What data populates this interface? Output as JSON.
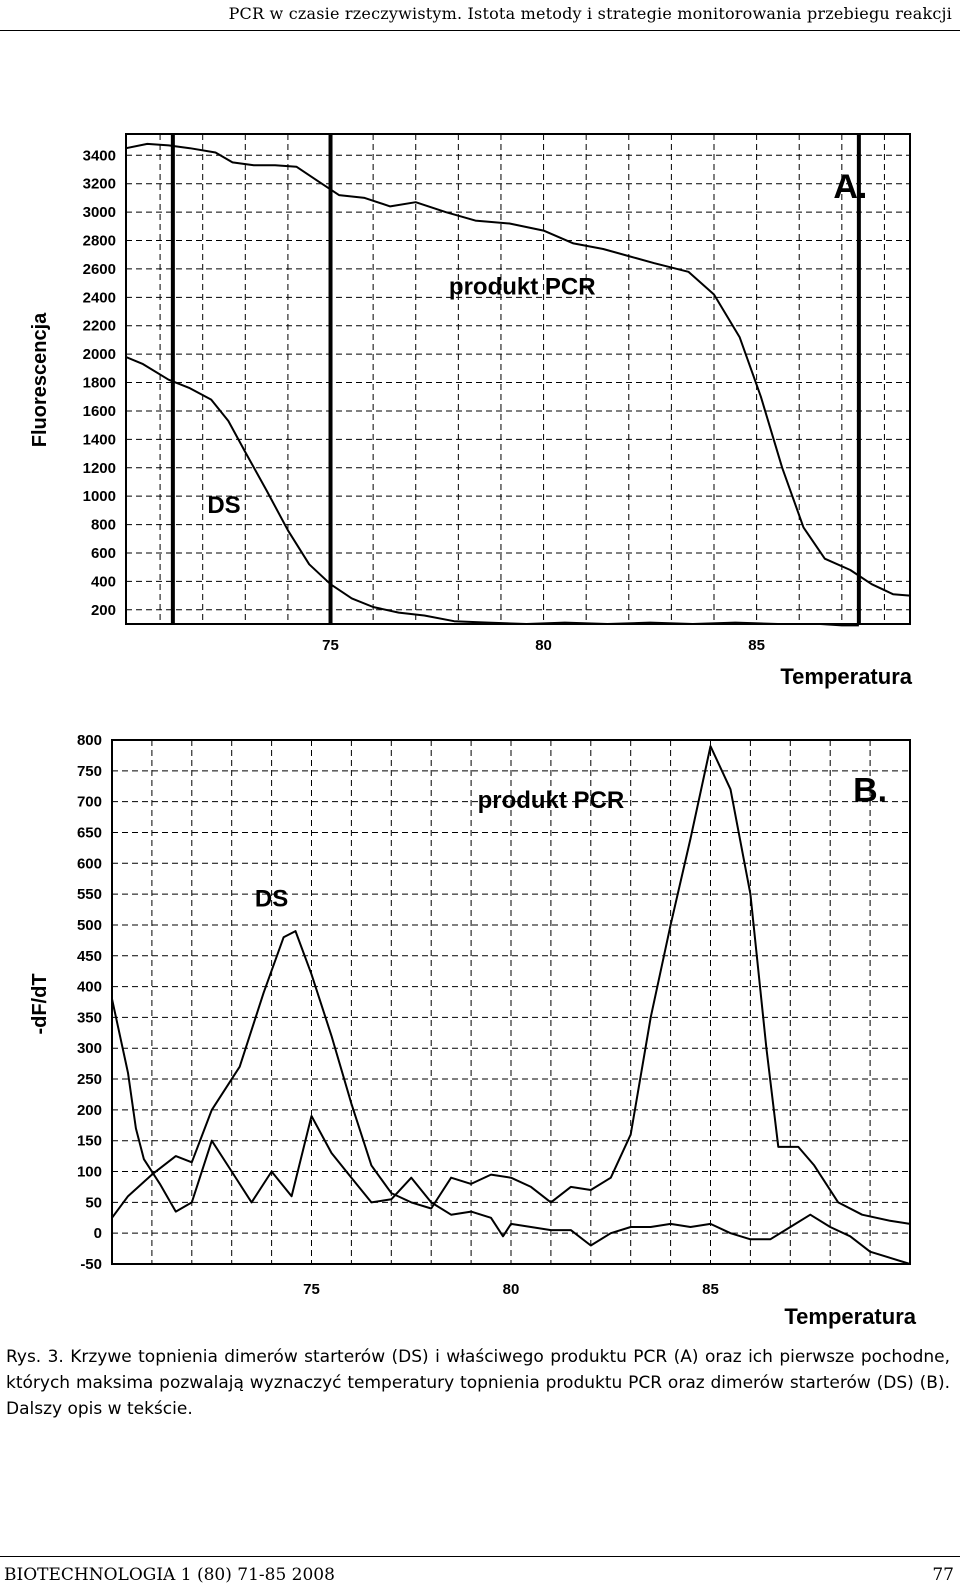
{
  "header": {
    "running_title": "PCR w czasie rzeczywistym. Istota metody i strategie monitorowania przebiegu reakcji"
  },
  "caption": {
    "text": "Rys. 3. Krzywe topnienia dimerów starterów (DS) i właściwego produktu PCR (A) oraz ich pierwsze pochodne, których maksima pozwalają wyznaczyć temperatury topnienia produktu PCR oraz dimerów starterów (DS) (B). Dalszy opis w tekście."
  },
  "footer": {
    "journal": "BIOTECHNOLOGIA 1 (80) 71-85 2008",
    "page_number": "77"
  },
  "chart_data": [
    {
      "panel": "A.",
      "type": "line",
      "xlabel": "Temperatura",
      "ylabel": "Fluorescencja",
      "xlim": [
        70.2,
        88.6
      ],
      "ylim": [
        100,
        3550
      ],
      "x_ticks": [
        75,
        80,
        85
      ],
      "y_ticks": [
        200,
        400,
        600,
        800,
        1000,
        1200,
        1400,
        1600,
        1800,
        2000,
        2200,
        2400,
        2600,
        2800,
        3000,
        3200,
        3400
      ],
      "grid": true,
      "vertical_markers": [
        71.3,
        75.0,
        87.4
      ],
      "annotations": [
        {
          "text": "produkt PCR",
          "x": 79.5,
          "y": 2420
        },
        {
          "text": "DS",
          "x": 72.5,
          "y": 880
        },
        {
          "text": "A.",
          "x": 87.2,
          "y": 3100
        }
      ],
      "series": [
        {
          "name": "produkt PCR",
          "points": [
            [
              70.2,
              3450
            ],
            [
              70.7,
              3480
            ],
            [
              71.2,
              3470
            ],
            [
              71.7,
              3450
            ],
            [
              72.3,
              3420
            ],
            [
              72.7,
              3350
            ],
            [
              73.2,
              3330
            ],
            [
              73.7,
              3330
            ],
            [
              74.2,
              3320
            ],
            [
              74.7,
              3220
            ],
            [
              75.2,
              3120
            ],
            [
              75.8,
              3100
            ],
            [
              76.4,
              3040
            ],
            [
              77.0,
              3070
            ],
            [
              77.7,
              3000
            ],
            [
              78.4,
              2940
            ],
            [
              79.2,
              2920
            ],
            [
              80.0,
              2870
            ],
            [
              80.7,
              2780
            ],
            [
              81.4,
              2740
            ],
            [
              82.0,
              2690
            ],
            [
              82.6,
              2640
            ],
            [
              83.4,
              2580
            ],
            [
              84.0,
              2420
            ],
            [
              84.6,
              2120
            ],
            [
              85.1,
              1700
            ],
            [
              85.6,
              1200
            ],
            [
              86.1,
              780
            ],
            [
              86.6,
              560
            ],
            [
              87.2,
              480
            ],
            [
              87.7,
              380
            ],
            [
              88.2,
              310
            ],
            [
              88.6,
              300
            ]
          ]
        },
        {
          "name": "DS",
          "points": [
            [
              70.2,
              1980
            ],
            [
              70.6,
              1930
            ],
            [
              71.2,
              1820
            ],
            [
              71.7,
              1760
            ],
            [
              72.2,
              1680
            ],
            [
              72.6,
              1530
            ],
            [
              73.0,
              1310
            ],
            [
              73.5,
              1040
            ],
            [
              74.0,
              760
            ],
            [
              74.5,
              520
            ],
            [
              75.0,
              380
            ],
            [
              75.5,
              280
            ],
            [
              76.0,
              220
            ],
            [
              76.6,
              180
            ],
            [
              77.2,
              160
            ],
            [
              77.9,
              120
            ],
            [
              78.7,
              110
            ],
            [
              79.6,
              100
            ],
            [
              80.5,
              110
            ],
            [
              81.5,
              100
            ],
            [
              82.5,
              110
            ],
            [
              83.5,
              100
            ],
            [
              84.5,
              110
            ],
            [
              85.5,
              100
            ],
            [
              86.5,
              100
            ],
            [
              87.0,
              90
            ],
            [
              87.4,
              90
            ]
          ]
        }
      ]
    },
    {
      "panel": "B.",
      "type": "line",
      "xlabel": "Temperatura",
      "ylabel": "-dF/dT",
      "xlim": [
        70.0,
        90.0
      ],
      "ylim": [
        -50,
        800
      ],
      "x_ticks": [
        75,
        80,
        85
      ],
      "y_ticks": [
        -50,
        0,
        50,
        100,
        150,
        200,
        250,
        300,
        350,
        400,
        450,
        500,
        550,
        600,
        650,
        700,
        750,
        800
      ],
      "grid": true,
      "annotations": [
        {
          "text": "produkt PCR",
          "x": 81.0,
          "y": 690
        },
        {
          "text": "DS",
          "x": 74.0,
          "y": 530
        },
        {
          "text": "B.",
          "x": 89.0,
          "y": 700
        }
      ],
      "series": [
        {
          "name": "produkt PCR",
          "points": [
            [
              70.0,
              25
            ],
            [
              70.4,
              60
            ],
            [
              71.0,
              95
            ],
            [
              71.6,
              125
            ],
            [
              72.0,
              115
            ],
            [
              72.5,
              200
            ],
            [
              73.2,
              270
            ],
            [
              73.8,
              390
            ],
            [
              74.3,
              480
            ],
            [
              74.6,
              490
            ],
            [
              75.0,
              420
            ],
            [
              75.5,
              320
            ],
            [
              76.0,
              210
            ],
            [
              76.5,
              110
            ],
            [
              77.0,
              65
            ],
            [
              77.5,
              50
            ],
            [
              78.0,
              40
            ],
            [
              78.5,
              90
            ],
            [
              79.0,
              80
            ],
            [
              79.5,
              95
            ],
            [
              80.0,
              90
            ],
            [
              80.5,
              75
            ],
            [
              81.0,
              50
            ],
            [
              81.5,
              75
            ],
            [
              82.0,
              70
            ],
            [
              82.5,
              90
            ],
            [
              83.0,
              160
            ],
            [
              83.5,
              350
            ],
            [
              84.0,
              500
            ],
            [
              84.5,
              640
            ],
            [
              85.0,
              790
            ],
            [
              85.5,
              720
            ],
            [
              86.0,
              550
            ],
            [
              86.4,
              300
            ],
            [
              86.7,
              140
            ],
            [
              87.2,
              140
            ],
            [
              87.6,
              110
            ],
            [
              88.2,
              50
            ],
            [
              88.8,
              30
            ],
            [
              89.5,
              20
            ],
            [
              90.0,
              15
            ]
          ]
        },
        {
          "name": "DS",
          "points": [
            [
              70.0,
              380
            ],
            [
              70.4,
              260
            ],
            [
              70.6,
              170
            ],
            [
              70.8,
              120
            ],
            [
              71.2,
              80
            ],
            [
              71.6,
              35
            ],
            [
              72.0,
              50
            ],
            [
              72.5,
              150
            ],
            [
              73.0,
              100
            ],
            [
              73.5,
              50
            ],
            [
              74.0,
              100
            ],
            [
              74.5,
              60
            ],
            [
              75.0,
              190
            ],
            [
              75.5,
              130
            ],
            [
              76.0,
              90
            ],
            [
              76.5,
              50
            ],
            [
              77.0,
              55
            ],
            [
              77.5,
              90
            ],
            [
              78.0,
              50
            ],
            [
              78.5,
              30
            ],
            [
              79.0,
              35
            ],
            [
              79.5,
              25
            ],
            [
              79.8,
              -5
            ],
            [
              80.0,
              15
            ],
            [
              80.5,
              10
            ],
            [
              81.0,
              5
            ],
            [
              81.5,
              5
            ],
            [
              82.0,
              -20
            ],
            [
              82.5,
              0
            ],
            [
              83.0,
              10
            ],
            [
              83.5,
              10
            ],
            [
              84.0,
              15
            ],
            [
              84.5,
              10
            ],
            [
              85.0,
              15
            ],
            [
              85.5,
              0
            ],
            [
              86.0,
              -10
            ],
            [
              86.5,
              -10
            ],
            [
              87.0,
              10
            ],
            [
              87.5,
              30
            ],
            [
              88.0,
              10
            ],
            [
              88.5,
              -5
            ],
            [
              89.0,
              -30
            ],
            [
              89.5,
              -40
            ],
            [
              90.0,
              -50
            ]
          ]
        }
      ]
    }
  ]
}
